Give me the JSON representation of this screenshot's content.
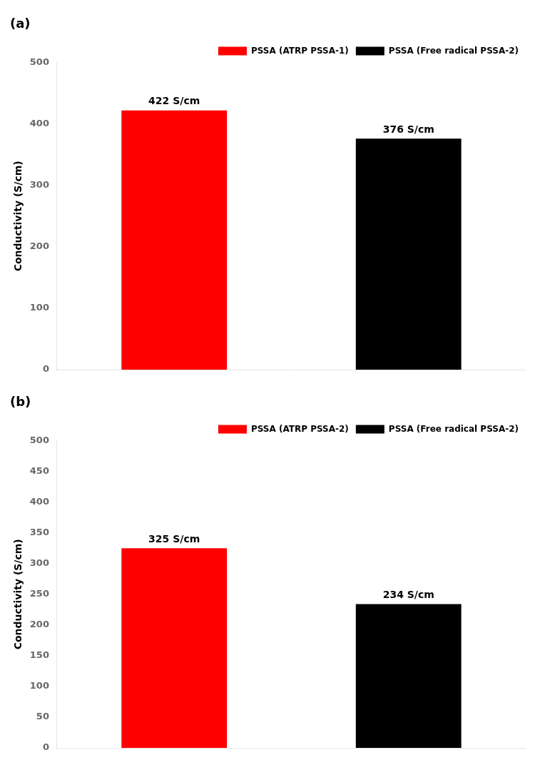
{
  "chart_data": [
    {
      "type": "bar",
      "title": "(a)",
      "y_label": "Conductivity (S/cm)",
      "categories": [
        null,
        null
      ],
      "series": [
        {
          "name": "PSSA (ATRP PSSA-1)",
          "color": "#ff0000",
          "values": [
            422,
            null
          ],
          "value_labels": [
            "422 S/cm",
            null
          ]
        },
        {
          "name": "PSSA (Free radical PSSA-2)",
          "color": "#000000",
          "values": [
            null,
            376
          ],
          "value_labels": [
            null,
            "376 S/cm"
          ]
        }
      ],
      "ylim": [
        0,
        500
      ],
      "yticks": [
        0,
        100,
        200,
        300,
        400,
        500
      ],
      "grid": false,
      "legend": "upper right",
      "data_labels": true,
      "tick_labels": "y"
    },
    {
      "type": "bar",
      "title": "(b)",
      "y_label": "Conductivity (S/cm)",
      "categories": [
        null,
        null
      ],
      "series": [
        {
          "name": "PSSA (ATRP PSSA-2)",
          "color": "#ff0000",
          "values": [
            325,
            null
          ],
          "value_labels": [
            "325 S/cm",
            null
          ]
        },
        {
          "name": "PSSA (Free radical PSSA-2)",
          "color": "#000000",
          "values": [
            null,
            234
          ],
          "value_labels": [
            null,
            "234 S/cm"
          ]
        }
      ],
      "ylim": [
        0,
        500
      ],
      "yticks": [
        0,
        50,
        100,
        150,
        200,
        250,
        300,
        350,
        400,
        450,
        500
      ],
      "grid": false,
      "legend": "upper right",
      "data_labels": true,
      "tick_labels": "y"
    }
  ]
}
